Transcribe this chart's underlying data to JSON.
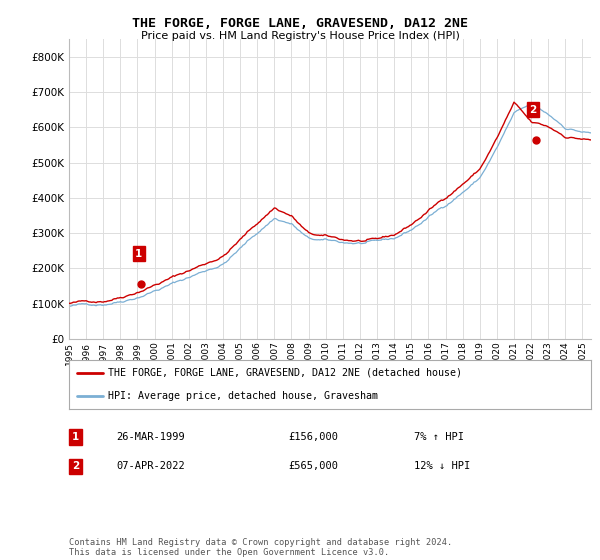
{
  "title": "THE FORGE, FORGE LANE, GRAVESEND, DA12 2NE",
  "subtitle": "Price paid vs. HM Land Registry's House Price Index (HPI)",
  "background_color": "#ffffff",
  "plot_bg_color": "#ffffff",
  "grid_color": "#dddddd",
  "red_line_color": "#cc0000",
  "blue_line_color": "#7bafd4",
  "legend_label_red": "THE FORGE, FORGE LANE, GRAVESEND, DA12 2NE (detached house)",
  "legend_label_blue": "HPI: Average price, detached house, Gravesham",
  "annotation1_num": "1",
  "annotation1_date": "26-MAR-1999",
  "annotation1_price": "£156,000",
  "annotation1_hpi": "7% ↑ HPI",
  "annotation2_num": "2",
  "annotation2_date": "07-APR-2022",
  "annotation2_price": "£565,000",
  "annotation2_hpi": "12% ↓ HPI",
  "footer": "Contains HM Land Registry data © Crown copyright and database right 2024.\nThis data is licensed under the Open Government Licence v3.0.",
  "ylim": [
    0,
    850000
  ],
  "yticks": [
    0,
    100000,
    200000,
    300000,
    400000,
    500000,
    600000,
    700000,
    800000
  ],
  "ytick_labels": [
    "£0",
    "£100K",
    "£200K",
    "£300K",
    "£400K",
    "£500K",
    "£600K",
    "£700K",
    "£800K"
  ],
  "sale1_x": 1999.23,
  "sale1_y": 156000,
  "sale2_x": 2022.27,
  "sale2_y": 565000,
  "xlim_left": 1995.0,
  "xlim_right": 2025.5
}
